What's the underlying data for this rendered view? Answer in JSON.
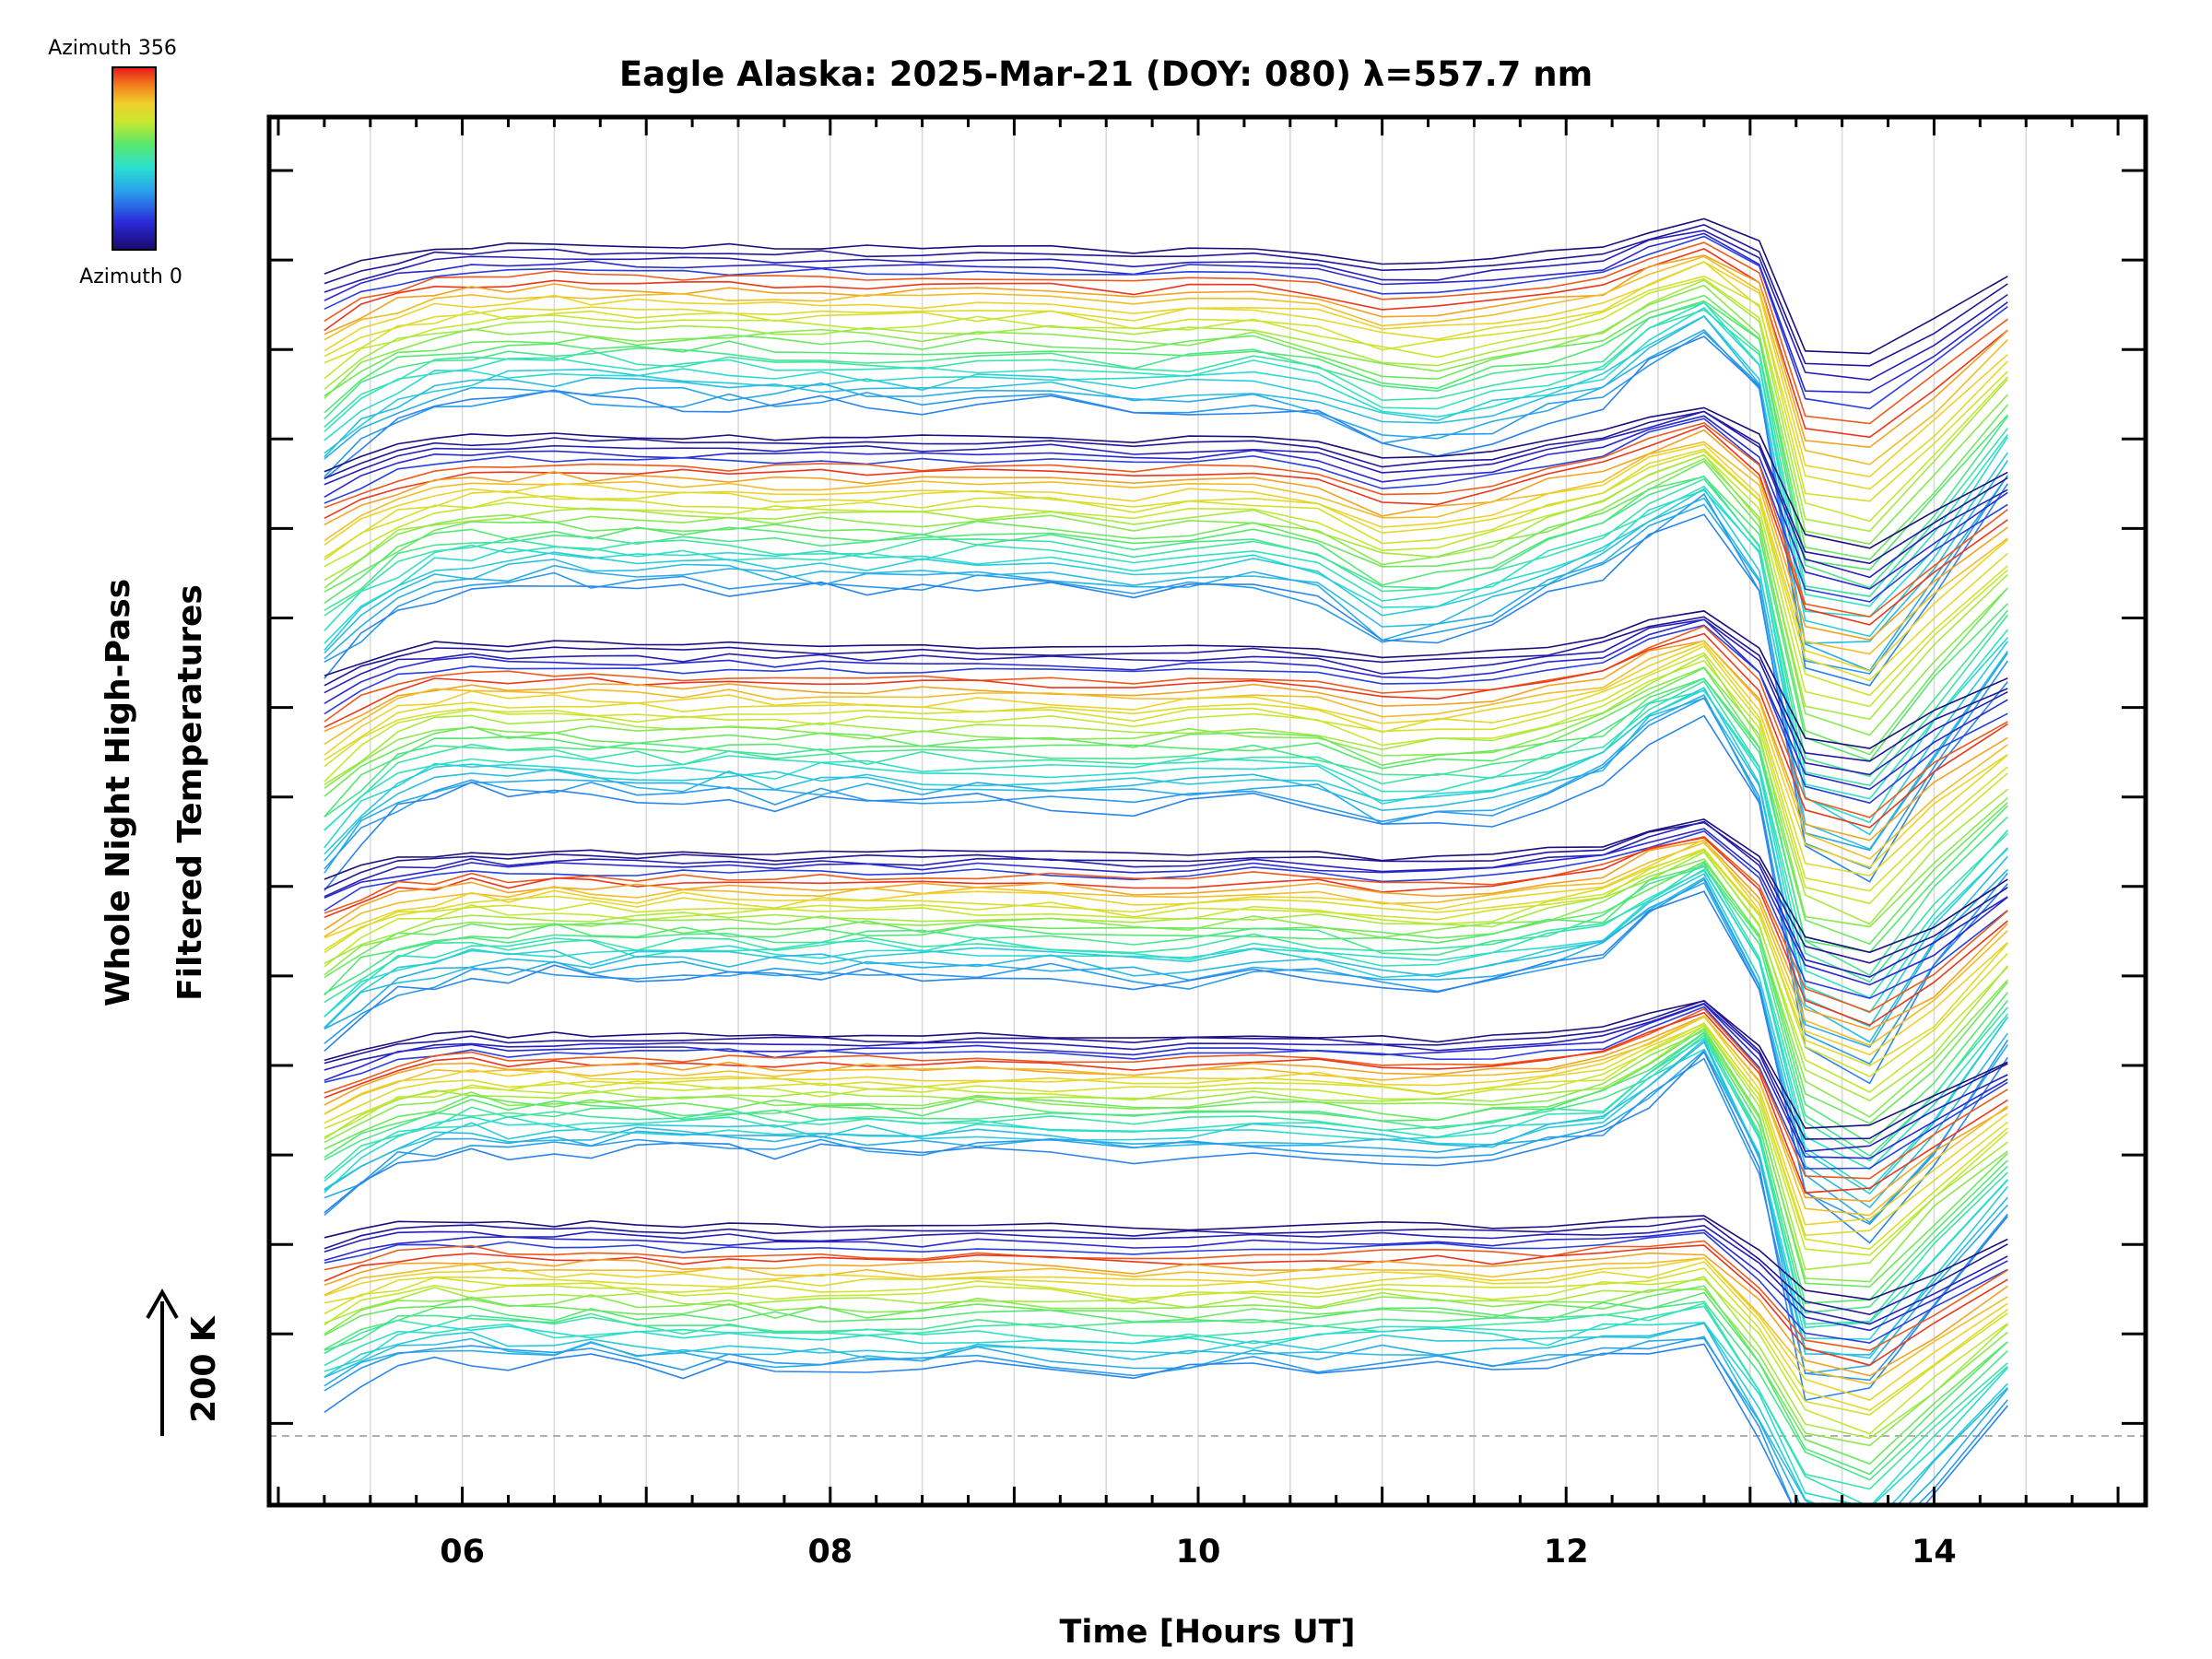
{
  "chart_data": {
    "type": "line",
    "title": "Eagle Alaska: 2025-Mar-21 (DOY: 080) λ=557.7 nm",
    "xlabel": "Time [Hours UT]",
    "ylabel_line1": "Whole Night High-Pass",
    "ylabel_line2": "Filtered Temperatures",
    "x_ticks": [
      "06",
      "08",
      "10",
      "12",
      "14"
    ],
    "x_tick_values": [
      6,
      8,
      10,
      12,
      14
    ],
    "xlim": [
      4.95,
      15.15
    ],
    "scale_bar": {
      "label": "200 K",
      "arrow": "up"
    },
    "colorbar": {
      "top_label": "Azimuth 356",
      "bottom_label": "Azimuth 0",
      "colormap": "rainbow (dark blue → red)"
    },
    "times": [
      5.25,
      5.45,
      5.65,
      5.85,
      6.05,
      6.25,
      6.5,
      6.7,
      6.95,
      7.2,
      7.45,
      7.7,
      7.95,
      8.2,
      8.5,
      8.8,
      9.2,
      9.65,
      9.95,
      10.3,
      10.65,
      11.0,
      11.3,
      11.6,
      11.9,
      12.2,
      12.45,
      12.75,
      13.05,
      13.3,
      13.65,
      14.0,
      14.4
    ],
    "groups": [
      {
        "name": "elevation band 1 (top)",
        "mean_path": [
          0.0,
          -12,
          -20,
          -25,
          -27,
          -28,
          -29,
          -28,
          -27,
          -27,
          -27,
          -26,
          -27,
          -26,
          -26,
          -27,
          -27,
          -23,
          -25,
          -27,
          -22,
          -12,
          -12,
          -16,
          -22,
          -26,
          -40,
          -50,
          -30,
          65,
          70,
          40,
          0
        ]
      },
      {
        "name": "elevation band 2",
        "mean_path": [
          0.0,
          -12,
          -22,
          -28,
          -30,
          -31,
          -32,
          -31,
          -31,
          -30,
          -30,
          -29,
          -30,
          -30,
          -30,
          -31,
          -31,
          -27,
          -29,
          -31,
          -25,
          -10,
          -12,
          -18,
          -28,
          -35,
          -48,
          -58,
          -30,
          60,
          70,
          35,
          0
        ]
      },
      {
        "name": "elevation band 3",
        "mean_path": [
          0.0,
          -14,
          -25,
          -30,
          -32,
          -30,
          -31,
          -30,
          -29,
          -28,
          -30,
          -28,
          -29,
          -28,
          -28,
          -28,
          -28,
          -26,
          -28,
          -29,
          -27,
          -18,
          -20,
          -22,
          -28,
          -35,
          -50,
          -60,
          -25,
          55,
          65,
          30,
          0
        ]
      },
      {
        "name": "elevation band 4",
        "mean_path": [
          0.0,
          -12,
          -20,
          -22,
          -26,
          -24,
          -26,
          -25,
          -24,
          -25,
          -25,
          -24,
          -25,
          -25,
          -25,
          -26,
          -25,
          -22,
          -22,
          -26,
          -25,
          -20,
          -20,
          -22,
          -28,
          -32,
          -45,
          -55,
          -20,
          50,
          65,
          40,
          0
        ]
      },
      {
        "name": "elevation band 5",
        "mean_path": [
          0.0,
          -10,
          -18,
          -22,
          -24,
          -22,
          -23,
          -22,
          -23,
          -22,
          -23,
          -22,
          -22,
          -22,
          -22,
          -23,
          -22,
          -20,
          -22,
          -23,
          -22,
          -20,
          -18,
          -20,
          -24,
          -28,
          -40,
          -55,
          -15,
          60,
          60,
          30,
          0
        ]
      },
      {
        "name": "elevation band 6 (bottom)",
        "mean_path": [
          0.0,
          -8,
          -14,
          -16,
          -16,
          -15,
          -14,
          -15,
          -13,
          -12,
          -13,
          -12,
          -12,
          -12,
          -12,
          -14,
          -13,
          -10,
          -11,
          -12,
          -12,
          -14,
          -14,
          -12,
          -13,
          -16,
          -18,
          -22,
          10,
          45,
          55,
          30,
          0
        ]
      }
    ]
  }
}
